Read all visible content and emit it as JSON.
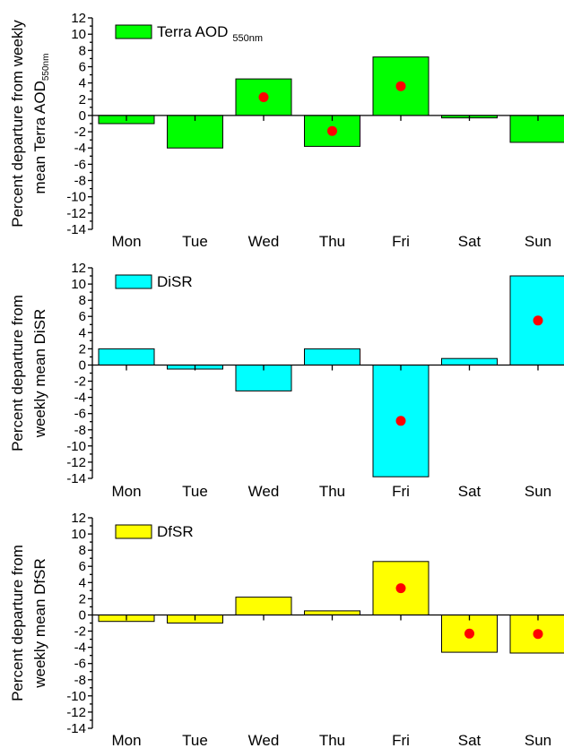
{
  "chart_data": [
    {
      "type": "bar",
      "categories": [
        "Mon",
        "Tue",
        "Wed",
        "Thu",
        "Fri",
        "Sat",
        "Sun"
      ],
      "series": [
        {
          "name": "Terra AOD",
          "name_sub": "550nm",
          "values": [
            -1.0,
            -4.0,
            4.5,
            -3.8,
            7.2,
            -0.3,
            -3.3
          ],
          "color": "#00ff00"
        }
      ],
      "significant": [
        false,
        false,
        true,
        true,
        true,
        false,
        false
      ],
      "marker_color": "#ff0000",
      "ylabel_lines": [
        "Percent departure from weekly",
        "mean Terra AOD"
      ],
      "ylabel_sub": "550nm",
      "ylim": [
        -14,
        12
      ],
      "yticks": [
        "12",
        "10",
        "8",
        "6",
        "4",
        "2",
        "0",
        "-2",
        "-4",
        "-6",
        "-8",
        "-10",
        "-12",
        "-14"
      ],
      "legend_position": "top-left",
      "grid": false
    },
    {
      "type": "bar",
      "categories": [
        "Mon",
        "Tue",
        "Wed",
        "Thu",
        "Fri",
        "Sat",
        "Sun"
      ],
      "series": [
        {
          "name": "DiSR",
          "name_sub": "",
          "values": [
            2.0,
            -0.5,
            -3.2,
            2.0,
            -13.8,
            0.8,
            11.0
          ],
          "color": "#00ffff"
        }
      ],
      "significant": [
        false,
        false,
        false,
        false,
        true,
        false,
        true
      ],
      "marker_color": "#ff0000",
      "ylabel_lines": [
        "Percent departure from",
        "weekly mean DiSR"
      ],
      "ylabel_sub": "",
      "ylim": [
        -14,
        12
      ],
      "yticks": [
        "12",
        "10",
        "8",
        "6",
        "4",
        "2",
        "0",
        "-2",
        "-4",
        "-6",
        "-8",
        "-10",
        "-12",
        "-14"
      ],
      "legend_position": "top-left",
      "grid": false
    },
    {
      "type": "bar",
      "categories": [
        "Mon",
        "Tue",
        "Wed",
        "Thu",
        "Fri",
        "Sat",
        "Sun"
      ],
      "series": [
        {
          "name": "DfSR",
          "name_sub": "",
          "values": [
            -0.8,
            -1.0,
            2.2,
            0.5,
            6.6,
            -4.6,
            -4.7
          ],
          "color": "#ffff00"
        }
      ],
      "significant": [
        false,
        false,
        false,
        false,
        true,
        true,
        true
      ],
      "marker_color": "#ff0000",
      "ylabel_lines": [
        "Percent departure from",
        "weekly mean DfSR"
      ],
      "ylabel_sub": "",
      "ylim": [
        -14,
        12
      ],
      "yticks": [
        "12",
        "10",
        "8",
        "6",
        "4",
        "2",
        "0",
        "-2",
        "-4",
        "-6",
        "-8",
        "-10",
        "-12",
        "-14"
      ],
      "legend_position": "top-left",
      "grid": false
    }
  ]
}
